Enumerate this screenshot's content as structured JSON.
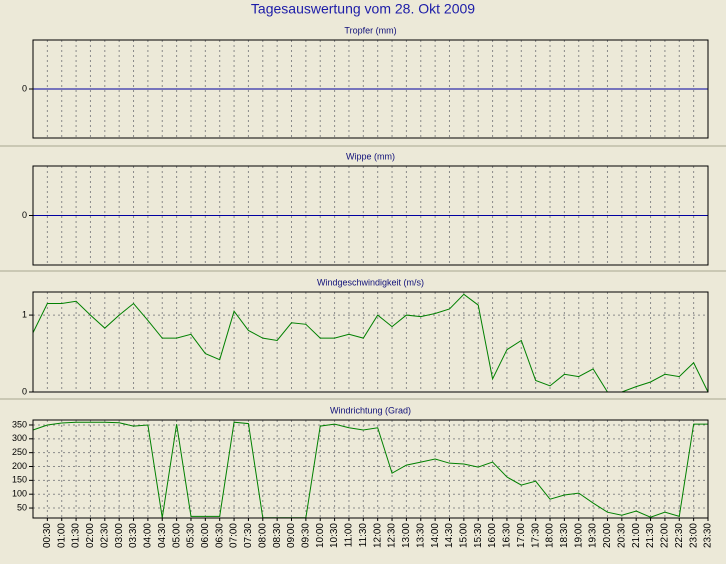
{
  "title": "Tagesauswertung vom 28. Okt 2009",
  "chart_data": [
    {
      "type": "line",
      "title": "Tropfer (mm)",
      "color": "#0000a0",
      "ylim": [
        -1,
        1
      ],
      "yticks": [
        0
      ],
      "grid": true,
      "values": [
        0,
        0,
        0,
        0,
        0,
        0,
        0,
        0,
        0,
        0,
        0,
        0,
        0,
        0,
        0,
        0,
        0,
        0,
        0,
        0,
        0,
        0,
        0,
        0,
        0,
        0,
        0,
        0,
        0,
        0,
        0,
        0,
        0,
        0,
        0,
        0,
        0,
        0,
        0,
        0,
        0,
        0,
        0,
        0,
        0,
        0,
        0,
        0
      ]
    },
    {
      "type": "line",
      "title": "Wippe (mm)",
      "color": "#0000a0",
      "ylim": [
        -1,
        1
      ],
      "yticks": [
        0
      ],
      "grid": true,
      "values": [
        0,
        0,
        0,
        0,
        0,
        0,
        0,
        0,
        0,
        0,
        0,
        0,
        0,
        0,
        0,
        0,
        0,
        0,
        0,
        0,
        0,
        0,
        0,
        0,
        0,
        0,
        0,
        0,
        0,
        0,
        0,
        0,
        0,
        0,
        0,
        0,
        0,
        0,
        0,
        0,
        0,
        0,
        0,
        0,
        0,
        0,
        0,
        0
      ]
    },
    {
      "type": "line",
      "title": "Windgeschwindigkeit (m/s)",
      "color": "#008000",
      "ylim": [
        0,
        1.3
      ],
      "yticks": [
        0,
        1
      ],
      "grid": true,
      "values": [
        0.77,
        1.15,
        1.15,
        1.18,
        1.0,
        0.83,
        1.0,
        1.15,
        0.93,
        0.7,
        0.7,
        0.75,
        0.5,
        0.42,
        1.05,
        0.8,
        0.7,
        0.67,
        0.9,
        0.88,
        0.7,
        0.7,
        0.75,
        0.7,
        1.0,
        0.85,
        1.0,
        0.98,
        1.02,
        1.08,
        1.27,
        1.13,
        0.17,
        0.55,
        0.67,
        0.15,
        0.08,
        0.23,
        0.2,
        0.3,
        0,
        0,
        0.07,
        0.13,
        0.23,
        0.2,
        0.38,
        0
      ]
    },
    {
      "type": "line",
      "title": "Windrichtung (Grad)",
      "color": "#008000",
      "ylim": [
        14,
        368
      ],
      "yticks": [
        50,
        100,
        150,
        200,
        250,
        300,
        350
      ],
      "grid": true,
      "categories": [
        null,
        "00:30",
        "01:00",
        "01:30",
        "02:00",
        "02:30",
        "03:00",
        "03:30",
        "04:00",
        "04:30",
        "05:00",
        "05:30",
        "06:00",
        "06:30",
        "07:00",
        "07:30",
        "08:00",
        "08:30",
        "09:00",
        "09:30",
        "10:00",
        "10:30",
        "11:00",
        "11:30",
        "12:00",
        "12:30",
        "13:00",
        "13:30",
        "14:00",
        "14:30",
        "15:00",
        "15:30",
        "16:00",
        "16:30",
        "17:00",
        "17:30",
        "18:00",
        "18:30",
        "19:00",
        "19:30",
        "20:00",
        "20:30",
        "21:00",
        "21:30",
        "22:00",
        "22:30",
        "23:00",
        "23:30"
      ],
      "values": [
        332,
        350,
        357,
        360,
        360,
        360,
        358,
        346,
        350,
        15,
        353,
        20,
        20,
        20,
        360,
        355,
        15,
        15,
        15,
        15,
        346,
        353,
        340,
        332,
        340,
        176,
        205,
        216,
        227,
        212,
        209,
        198,
        216,
        162,
        133,
        147,
        82,
        97,
        104,
        68,
        35,
        24,
        39,
        17,
        35,
        20,
        353,
        353
      ]
    }
  ]
}
